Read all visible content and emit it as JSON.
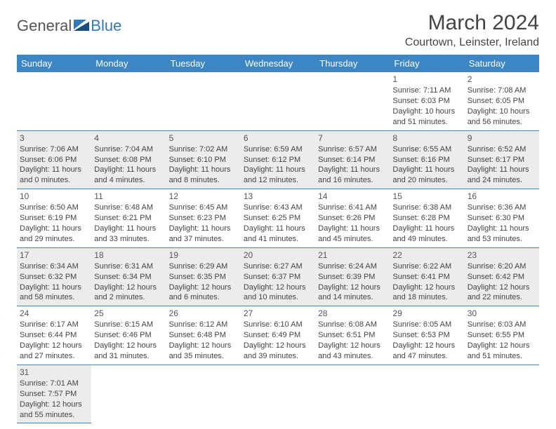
{
  "logo": {
    "general": "General",
    "blue": "Blue"
  },
  "header": {
    "title": "March 2024",
    "location": "Courtown, Leinster, Ireland"
  },
  "colors": {
    "headerBg": "#3d86c6",
    "altRow": "#ececec",
    "accentBlue": "#2f7ac0"
  },
  "dayNames": [
    "Sunday",
    "Monday",
    "Tuesday",
    "Wednesday",
    "Thursday",
    "Friday",
    "Saturday"
  ],
  "weeks": [
    [
      null,
      null,
      null,
      null,
      null,
      {
        "n": "1",
        "sr": "Sunrise: 7:11 AM",
        "ss": "Sunset: 6:03 PM",
        "dl1": "Daylight: 10 hours",
        "dl2": "and 51 minutes."
      },
      {
        "n": "2",
        "sr": "Sunrise: 7:08 AM",
        "ss": "Sunset: 6:05 PM",
        "dl1": "Daylight: 10 hours",
        "dl2": "and 56 minutes."
      }
    ],
    [
      {
        "n": "3",
        "sr": "Sunrise: 7:06 AM",
        "ss": "Sunset: 6:06 PM",
        "dl1": "Daylight: 11 hours",
        "dl2": "and 0 minutes."
      },
      {
        "n": "4",
        "sr": "Sunrise: 7:04 AM",
        "ss": "Sunset: 6:08 PM",
        "dl1": "Daylight: 11 hours",
        "dl2": "and 4 minutes."
      },
      {
        "n": "5",
        "sr": "Sunrise: 7:02 AM",
        "ss": "Sunset: 6:10 PM",
        "dl1": "Daylight: 11 hours",
        "dl2": "and 8 minutes."
      },
      {
        "n": "6",
        "sr": "Sunrise: 6:59 AM",
        "ss": "Sunset: 6:12 PM",
        "dl1": "Daylight: 11 hours",
        "dl2": "and 12 minutes."
      },
      {
        "n": "7",
        "sr": "Sunrise: 6:57 AM",
        "ss": "Sunset: 6:14 PM",
        "dl1": "Daylight: 11 hours",
        "dl2": "and 16 minutes."
      },
      {
        "n": "8",
        "sr": "Sunrise: 6:55 AM",
        "ss": "Sunset: 6:16 PM",
        "dl1": "Daylight: 11 hours",
        "dl2": "and 20 minutes."
      },
      {
        "n": "9",
        "sr": "Sunrise: 6:52 AM",
        "ss": "Sunset: 6:17 PM",
        "dl1": "Daylight: 11 hours",
        "dl2": "and 24 minutes."
      }
    ],
    [
      {
        "n": "10",
        "sr": "Sunrise: 6:50 AM",
        "ss": "Sunset: 6:19 PM",
        "dl1": "Daylight: 11 hours",
        "dl2": "and 29 minutes."
      },
      {
        "n": "11",
        "sr": "Sunrise: 6:48 AM",
        "ss": "Sunset: 6:21 PM",
        "dl1": "Daylight: 11 hours",
        "dl2": "and 33 minutes."
      },
      {
        "n": "12",
        "sr": "Sunrise: 6:45 AM",
        "ss": "Sunset: 6:23 PM",
        "dl1": "Daylight: 11 hours",
        "dl2": "and 37 minutes."
      },
      {
        "n": "13",
        "sr": "Sunrise: 6:43 AM",
        "ss": "Sunset: 6:25 PM",
        "dl1": "Daylight: 11 hours",
        "dl2": "and 41 minutes."
      },
      {
        "n": "14",
        "sr": "Sunrise: 6:41 AM",
        "ss": "Sunset: 6:26 PM",
        "dl1": "Daylight: 11 hours",
        "dl2": "and 45 minutes."
      },
      {
        "n": "15",
        "sr": "Sunrise: 6:38 AM",
        "ss": "Sunset: 6:28 PM",
        "dl1": "Daylight: 11 hours",
        "dl2": "and 49 minutes."
      },
      {
        "n": "16",
        "sr": "Sunrise: 6:36 AM",
        "ss": "Sunset: 6:30 PM",
        "dl1": "Daylight: 11 hours",
        "dl2": "and 53 minutes."
      }
    ],
    [
      {
        "n": "17",
        "sr": "Sunrise: 6:34 AM",
        "ss": "Sunset: 6:32 PM",
        "dl1": "Daylight: 11 hours",
        "dl2": "and 58 minutes."
      },
      {
        "n": "18",
        "sr": "Sunrise: 6:31 AM",
        "ss": "Sunset: 6:34 PM",
        "dl1": "Daylight: 12 hours",
        "dl2": "and 2 minutes."
      },
      {
        "n": "19",
        "sr": "Sunrise: 6:29 AM",
        "ss": "Sunset: 6:35 PM",
        "dl1": "Daylight: 12 hours",
        "dl2": "and 6 minutes."
      },
      {
        "n": "20",
        "sr": "Sunrise: 6:27 AM",
        "ss": "Sunset: 6:37 PM",
        "dl1": "Daylight: 12 hours",
        "dl2": "and 10 minutes."
      },
      {
        "n": "21",
        "sr": "Sunrise: 6:24 AM",
        "ss": "Sunset: 6:39 PM",
        "dl1": "Daylight: 12 hours",
        "dl2": "and 14 minutes."
      },
      {
        "n": "22",
        "sr": "Sunrise: 6:22 AM",
        "ss": "Sunset: 6:41 PM",
        "dl1": "Daylight: 12 hours",
        "dl2": "and 18 minutes."
      },
      {
        "n": "23",
        "sr": "Sunrise: 6:20 AM",
        "ss": "Sunset: 6:42 PM",
        "dl1": "Daylight: 12 hours",
        "dl2": "and 22 minutes."
      }
    ],
    [
      {
        "n": "24",
        "sr": "Sunrise: 6:17 AM",
        "ss": "Sunset: 6:44 PM",
        "dl1": "Daylight: 12 hours",
        "dl2": "and 27 minutes."
      },
      {
        "n": "25",
        "sr": "Sunrise: 6:15 AM",
        "ss": "Sunset: 6:46 PM",
        "dl1": "Daylight: 12 hours",
        "dl2": "and 31 minutes."
      },
      {
        "n": "26",
        "sr": "Sunrise: 6:12 AM",
        "ss": "Sunset: 6:48 PM",
        "dl1": "Daylight: 12 hours",
        "dl2": "and 35 minutes."
      },
      {
        "n": "27",
        "sr": "Sunrise: 6:10 AM",
        "ss": "Sunset: 6:49 PM",
        "dl1": "Daylight: 12 hours",
        "dl2": "and 39 minutes."
      },
      {
        "n": "28",
        "sr": "Sunrise: 6:08 AM",
        "ss": "Sunset: 6:51 PM",
        "dl1": "Daylight: 12 hours",
        "dl2": "and 43 minutes."
      },
      {
        "n": "29",
        "sr": "Sunrise: 6:05 AM",
        "ss": "Sunset: 6:53 PM",
        "dl1": "Daylight: 12 hours",
        "dl2": "and 47 minutes."
      },
      {
        "n": "30",
        "sr": "Sunrise: 6:03 AM",
        "ss": "Sunset: 6:55 PM",
        "dl1": "Daylight: 12 hours",
        "dl2": "and 51 minutes."
      }
    ],
    [
      {
        "n": "31",
        "sr": "Sunrise: 7:01 AM",
        "ss": "Sunset: 7:57 PM",
        "dl1": "Daylight: 12 hours",
        "dl2": "and 55 minutes."
      },
      null,
      null,
      null,
      null,
      null,
      null
    ]
  ]
}
